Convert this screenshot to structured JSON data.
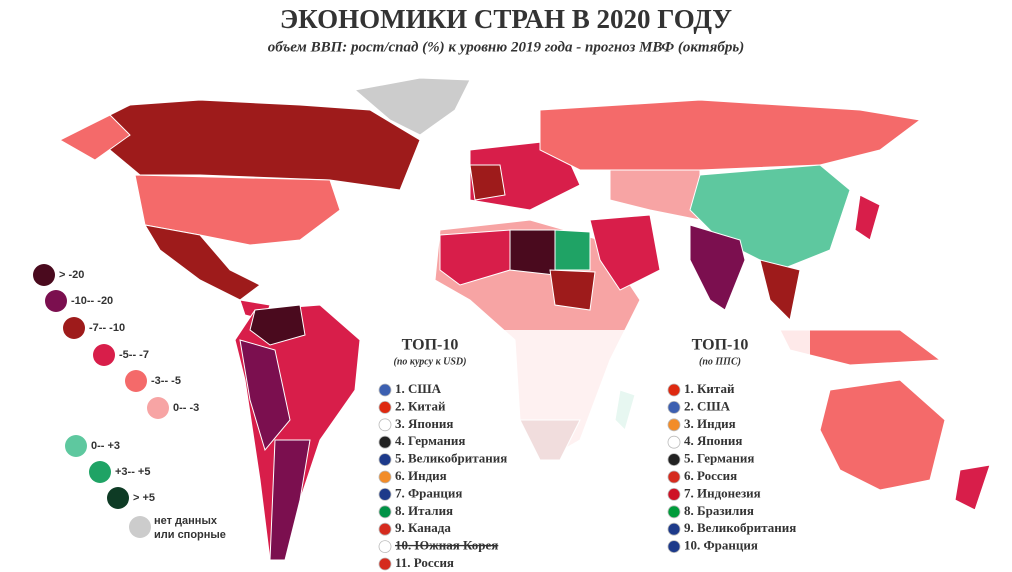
{
  "header": {
    "title": "ЭКОНОМИКИ СТРАН В 2020 ГОДУ",
    "subtitle": "объем ВВП: рост/спад (%) к уровню 2019 года - прогноз МВФ (октябрь)"
  },
  "legend": [
    {
      "label": ">  -20",
      "color": "#4a0a1e"
    },
    {
      "label": "-10--  -20",
      "color": "#7b0f4f"
    },
    {
      "label": "-7--  -10",
      "color": "#9e1b1b"
    },
    {
      "label": "-5--  -7",
      "color": "#d81e4a"
    },
    {
      "label": "-3--  -5",
      "color": "#f46a6a"
    },
    {
      "label": "0--  -3",
      "color": "#f7a4a4"
    },
    {
      "label": "0--  +3",
      "color": "#5ec89f"
    },
    {
      "label": "+3--  +5",
      "color": "#1fa365"
    },
    {
      "label": ">  +5",
      "color": "#0e3b25"
    },
    {
      "label": "нет данных или спорные",
      "color": "#cccccc"
    }
  ],
  "top_usd": {
    "title": "ТОП-10",
    "subtitle": "(по курсу к USD)",
    "items": [
      "1. США",
      "2. Китай",
      "3. Япония",
      "4. Германия",
      "5. Великобритания",
      "6. Индия",
      "7. Франция",
      "8. Италия",
      "9. Канада",
      "10. Южная Корея",
      "11. Россия"
    ]
  },
  "top_ppp": {
    "title": "ТОП-10",
    "subtitle": "(по ППС)",
    "items": [
      "1. Китай",
      "2. США",
      "3. Индия",
      "4. Япония",
      "5. Германия",
      "6. Россия",
      "7. Индонезия",
      "8. Бразилия",
      "9. Великобритания",
      "10. Франция"
    ]
  }
}
